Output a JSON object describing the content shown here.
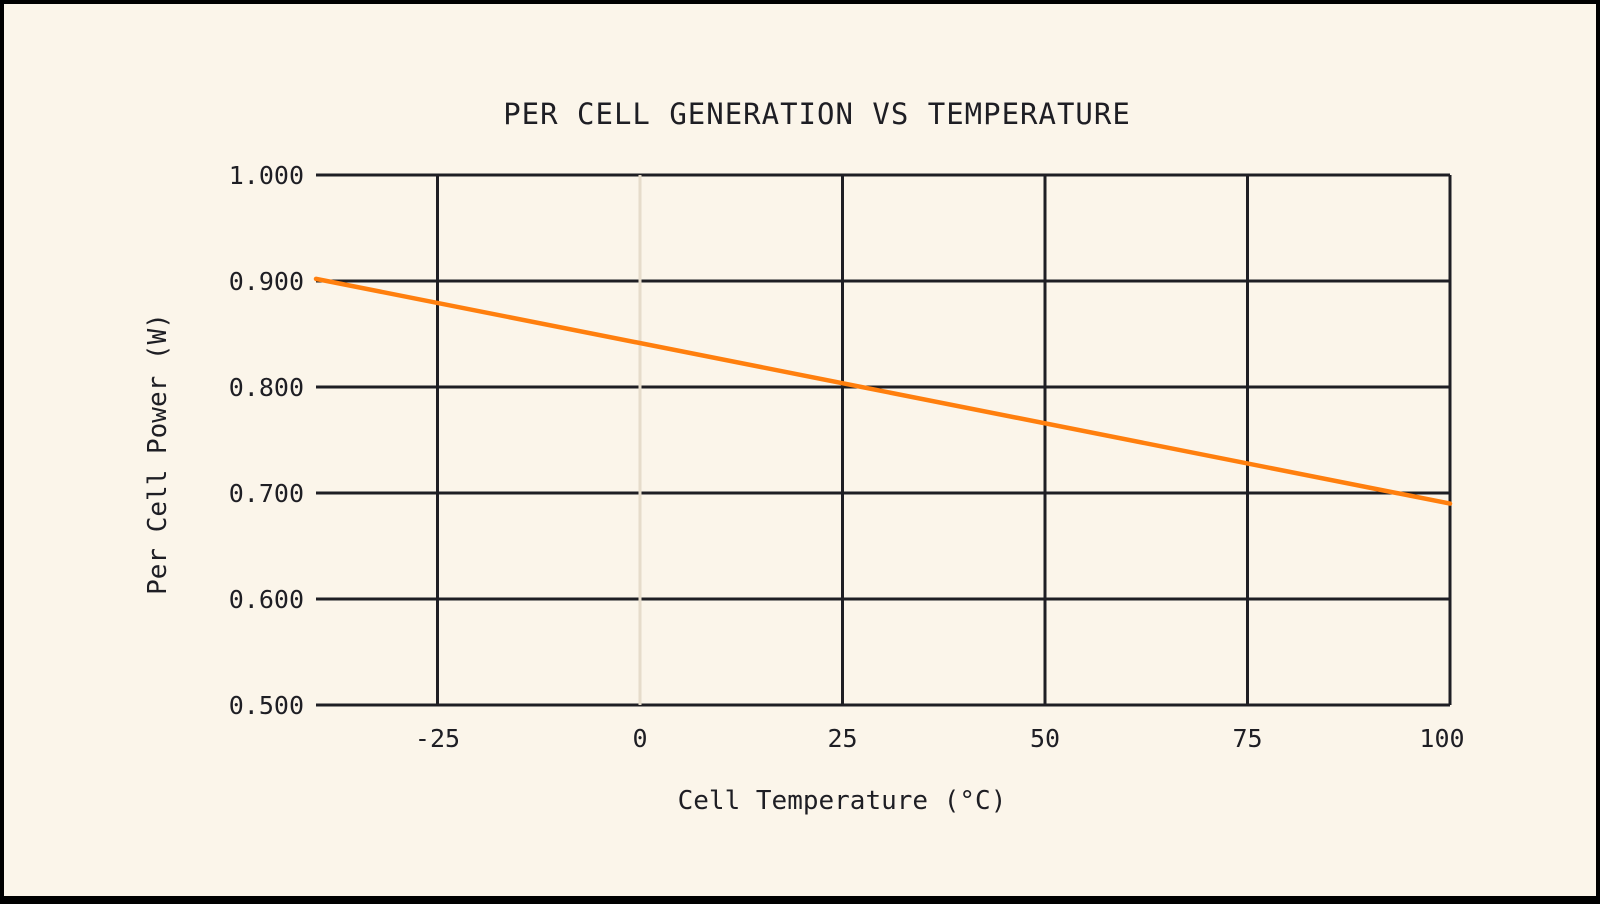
{
  "chart_data": {
    "type": "line",
    "title": "PER CELL GENERATION VS TEMPERATURE",
    "xlabel": "Cell Temperature (°C)",
    "ylabel": "Per Cell Power (W)",
    "xlim": [
      -40,
      100
    ],
    "ylim": [
      0.5,
      1.0
    ],
    "x_ticks": [
      -25,
      0,
      25,
      50,
      75,
      100
    ],
    "x_tick_labels": [
      "-25",
      "0",
      "25",
      "50",
      "75",
      "100"
    ],
    "y_ticks": [
      0.5,
      0.6,
      0.7,
      0.8,
      0.9,
      1.0
    ],
    "y_tick_labels": [
      "0.500",
      "0.600",
      "0.700",
      "0.800",
      "0.900",
      "1.000"
    ],
    "grid": true,
    "series": [
      {
        "color": "#ff7f0e",
        "x": [
          -40,
          100
        ],
        "y": [
          0.902,
          0.69
        ]
      }
    ],
    "colors": {
      "background": "#fbf5ea",
      "grid": "#1e1e24",
      "zero_line": "#e6dccb",
      "series": "#ff7f0e"
    }
  }
}
